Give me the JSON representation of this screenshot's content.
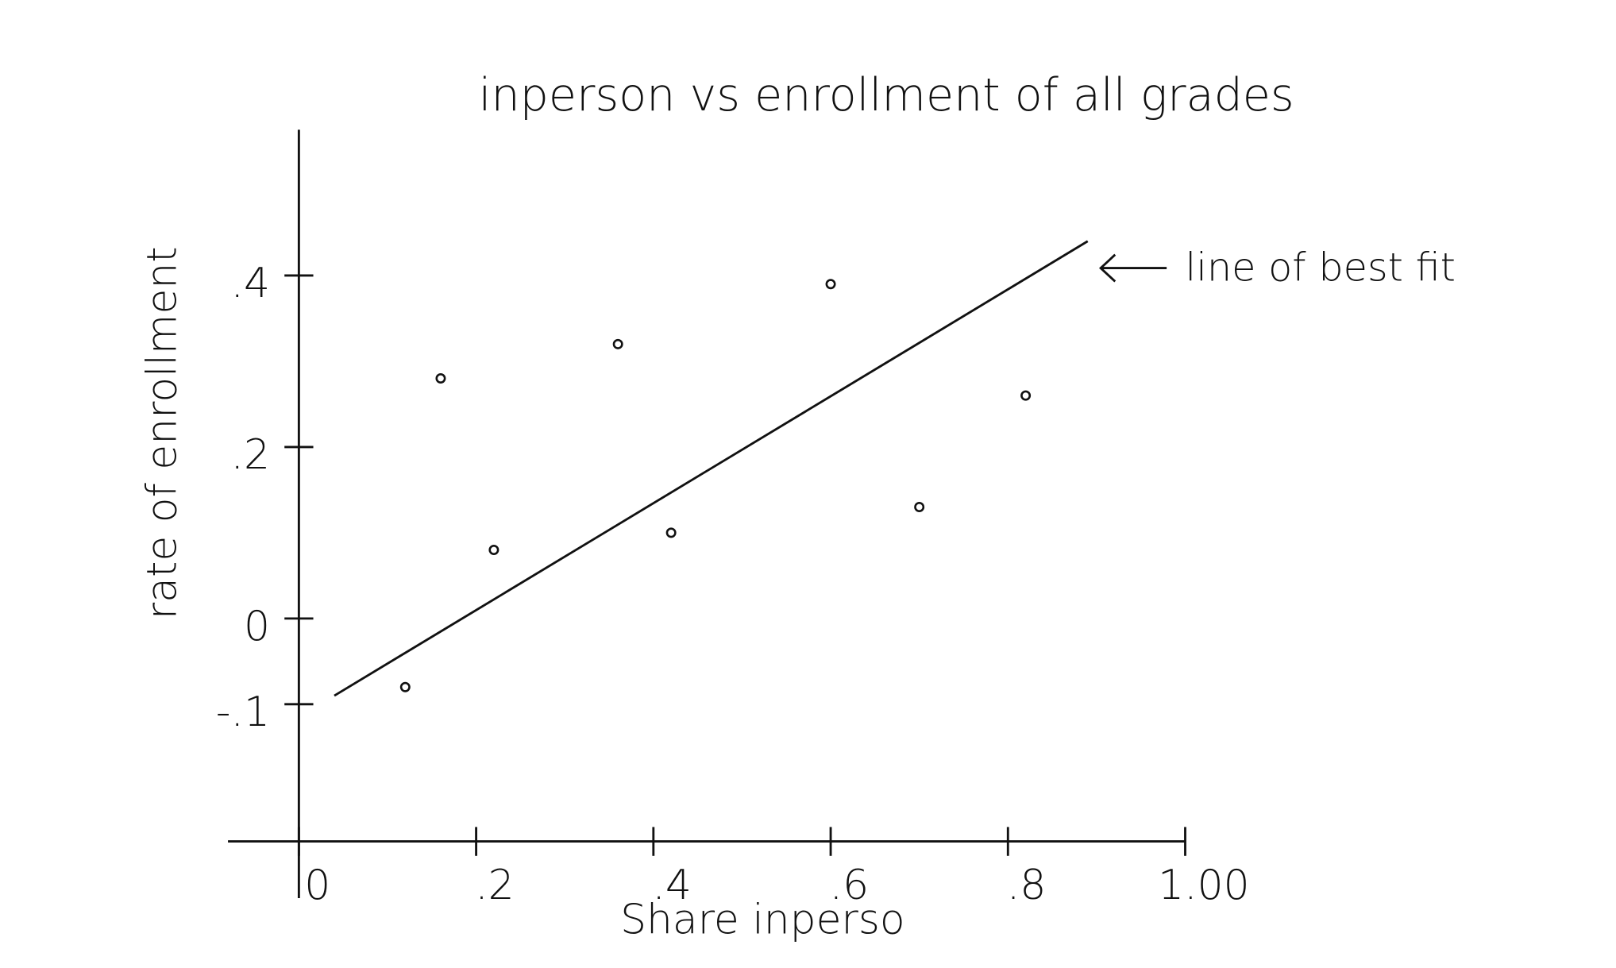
{
  "chart_data": {
    "type": "scatter",
    "title": "inperson vs enrollment of all grades",
    "x_label": "Share inperso",
    "y_label": "rate of enrollment",
    "annotation": "line of best fit",
    "x": [
      0.16,
      0.22,
      0.36,
      0.42,
      0.6,
      0.7,
      0.82,
      0.12
    ],
    "values": [
      0.28,
      0.08,
      0.32,
      0.1,
      0.39,
      0.13,
      0.26,
      -0.08
    ],
    "color": "#111111",
    "fit_line": {
      "x": [
        0.04,
        0.89
      ],
      "values": [
        -0.09,
        0.44
      ]
    },
    "xlim": [
      -0.08,
      1.0
    ],
    "ylim": [
      -0.26,
      0.57
    ],
    "xticks": [
      0,
      {
        "value": 0.2,
        "label": ".2"
      },
      {
        "value": 0.4,
        "label": ".4"
      },
      {
        "value": 0.6,
        "label": ".6"
      },
      {
        "value": 0.8,
        "label": ".8"
      },
      {
        "value": 1.0,
        "label": "1.00"
      }
    ],
    "yticks": [
      {
        "value": 0.4,
        "label": ".4"
      },
      {
        "value": 0.2,
        "label": ".2"
      },
      0,
      {
        "value": -0.1,
        "label": "-.1"
      }
    ],
    "grid": false
  }
}
